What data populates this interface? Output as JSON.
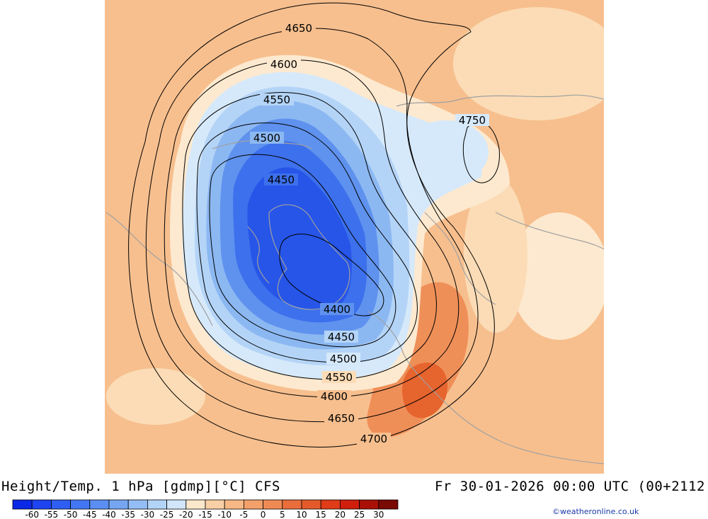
{
  "header": {
    "title_left": "Height/Temp. 1 hPa [gdmp][°C] CFS",
    "title_right": "Fr 30-01-2026 00:00 UTC (00+2112"
  },
  "credit": "©weatheronline.co.uk",
  "colorbar": {
    "labels": [
      "-60",
      "-55",
      "-50",
      "-45",
      "-40",
      "-35",
      "-30",
      "-25",
      "-20",
      "-15",
      "-10",
      "-5",
      "0",
      "5",
      "10",
      "15",
      "20",
      "25",
      "30"
    ],
    "colors": [
      "#0a28e6",
      "#1d44f0",
      "#2f5ef2",
      "#4277f3",
      "#5a8ef2",
      "#76a6f2",
      "#93bdf4",
      "#b2d4f7",
      "#d2e6f9",
      "#fbe8cc",
      "#f9cfa5",
      "#f7b886",
      "#f4a06b",
      "#f08a55",
      "#ea6e3c",
      "#e45a2a",
      "#e03c17",
      "#d01f0c",
      "#a91007",
      "#7a0a04"
    ]
  },
  "map": {
    "contour_labels": [
      "4650",
      "4600",
      "4550",
      "4500",
      "4450",
      "4400",
      "4450",
      "4500",
      "4550",
      "4600",
      "4650",
      "4700",
      "4750"
    ],
    "colors": {
      "background": "#f7bf8e",
      "warm_light": "#fbdcb6",
      "warm_strong": "#ef8f58",
      "warm_hot": "#e6642e",
      "cold_edge": "#fde9cf",
      "cold_1": "#d6e9fa",
      "cold_2": "#b4d4f7",
      "cold_3": "#8cb8f2",
      "cold_4": "#5f92ee",
      "cold_5": "#3d70ec",
      "cold_6": "#2655e8",
      "contour": "#000000",
      "coast": "#a0a0a0"
    }
  }
}
